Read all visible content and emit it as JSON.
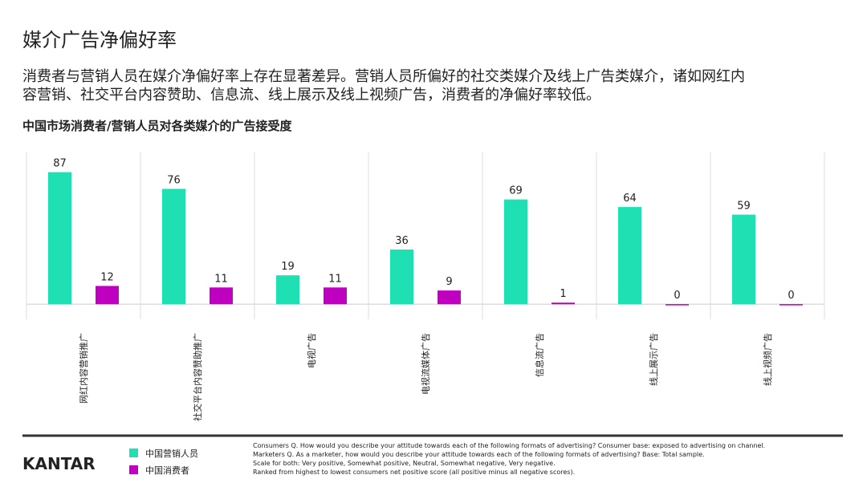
{
  "chart_data": {
    "type": "bar",
    "title": "媒介广告净偏好率",
    "subtitle": [
      "消费者与营销人员在媒介净偏好率上存在显著差异。营销人员所偏好的社交类媒介及线上广告类媒介，诸如网红内",
      "容营销、社交平台内容赞助、信息流、线上展示及线上视频广告，消费者的净偏好率较低。"
    ],
    "chart_title": "中国市场消费者/营销人员对各类媒介的广告接受度",
    "categories": [
      "网红内容营销推广",
      "社交平台内容赞助推广",
      "电视广告",
      "电视流媒体广告",
      "信息流广告",
      "线上展示广告",
      "线上视频广告"
    ],
    "series": [
      {
        "name": "中国营销人员",
        "color": "#1fe0b3",
        "values": [
          87,
          76,
          19,
          36,
          69,
          64,
          59
        ]
      },
      {
        "name": "中国消费者",
        "color": "#c000c0",
        "values": [
          12,
          11,
          11,
          9,
          1,
          0,
          0
        ]
      }
    ],
    "ylim": [
      -10,
      100
    ]
  },
  "footer": {
    "logo": "KANTAR",
    "notes": [
      "Consumers Q. How would you describe your attitude towards each of the following formats of advertising? Consumer base: exposed to advertising on channel.",
      "Marketers Q. As a marketer, how would you describe your attitude towards each of the following formats of advertising? Base: Total sample.",
      "Scale for both: Very positive, Somewhat positive, Neutral, Somewhat negative, Very negative.",
      "Ranked from highest to lowest consumers net positive score (all positive minus all negative scores)."
    ]
  }
}
